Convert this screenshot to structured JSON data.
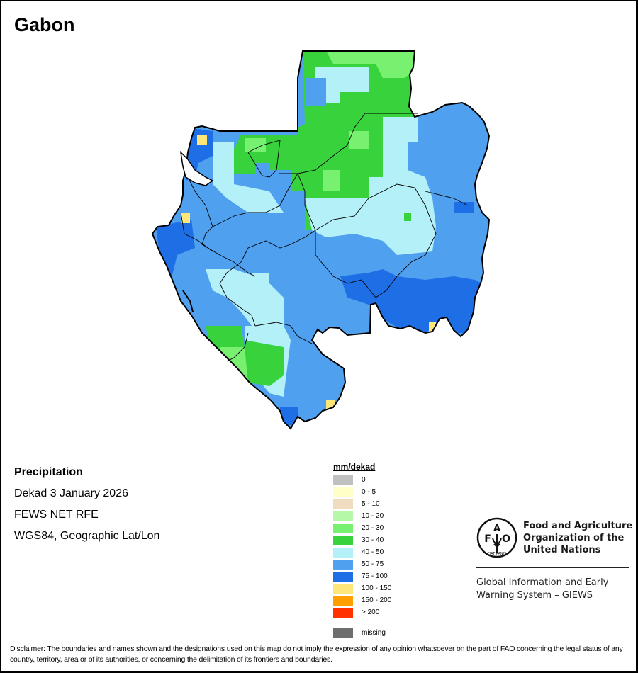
{
  "map": {
    "title": "Gabon",
    "info": {
      "variable": "Precipitation",
      "period": "Dekad 3 January 2026",
      "source": "FEWS NET RFE",
      "projection": "WGS84, Geographic Lat/Lon"
    },
    "legend": {
      "unit": "mm/dekad",
      "classes": [
        {
          "label": "0",
          "color": "#c0c0c0"
        },
        {
          "label": "0 - 5",
          "color": "#ffffc8"
        },
        {
          "label": "5 - 10",
          "color": "#f0dcbe"
        },
        {
          "label": "10 - 20",
          "color": "#b4f8a8"
        },
        {
          "label": "20 - 30",
          "color": "#78f070"
        },
        {
          "label": "30 - 40",
          "color": "#38d23c"
        },
        {
          "label": "40 - 50",
          "color": "#b4f0f8"
        },
        {
          "label": "50 - 75",
          "color": "#50a0f0"
        },
        {
          "label": "75 - 100",
          "color": "#1e6ee6"
        },
        {
          "label": "100 - 150",
          "color": "#ffe678"
        },
        {
          "label": "150 - 200",
          "color": "#ffa000"
        },
        {
          "label": "> 200",
          "color": "#ff3200"
        }
      ],
      "missing": {
        "label": "missing",
        "color": "#6e6e6e"
      }
    },
    "organization": {
      "logo_letters": [
        "F",
        "A",
        "O"
      ],
      "logo_motto": "FIAT PANIS",
      "name_lines": [
        "Food and Agriculture",
        "Organization of the",
        "United Nations"
      ],
      "system_lines": [
        "Global Information and Early",
        "Warning System – GIEWS"
      ]
    },
    "disclaimer": "Disclaimer: The boundaries and names shown and the designations used on this map do not imply the expression of any opinion whatsoever on the part of FAO concerning the legal status of any country, territory, area or of its authorities, or concerning the delimitation of its frontiers and boundaries."
  }
}
